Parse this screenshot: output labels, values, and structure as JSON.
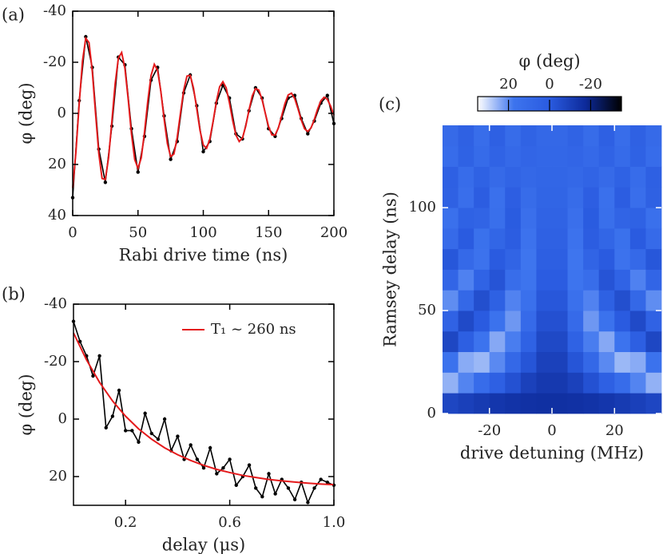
{
  "chart_data": [
    {
      "type": "line",
      "label": "(a)",
      "xlabel": "Rabi drive time (ns)",
      "ylabel": "φ (deg)",
      "xlim": [
        0,
        200
      ],
      "ylim": [
        40,
        -40
      ],
      "xticks": [
        0,
        50,
        100,
        150,
        200
      ],
      "yticks": [
        -40,
        -20,
        0,
        20,
        40
      ],
      "series": [
        {
          "color": "#000000",
          "markers": true,
          "x": [
            0,
            5,
            10,
            15,
            20,
            25,
            30,
            35,
            40,
            45,
            50,
            55,
            60,
            65,
            70,
            75,
            80,
            85,
            90,
            95,
            100,
            105,
            110,
            115,
            120,
            125,
            130,
            135,
            140,
            145,
            150,
            155,
            160,
            165,
            170,
            175,
            180,
            185,
            190,
            195,
            200
          ],
          "values": [
            33,
            -5,
            -30,
            -18,
            14,
            27,
            5,
            -22,
            -19,
            6,
            23,
            9,
            -13,
            -18,
            1,
            18,
            11,
            -8,
            -15,
            -3,
            15,
            11,
            -4,
            -11,
            -6,
            8,
            10,
            -1,
            -10,
            -6,
            6,
            9,
            2,
            -6,
            -7,
            2,
            8,
            3,
            -4,
            -7,
            4
          ]
        },
        {
          "color": "#e41a1c",
          "markers": false,
          "x": [
            0,
            2.5,
            5,
            7.5,
            10,
            12.5,
            15,
            17.5,
            20,
            22.5,
            25,
            27.5,
            30,
            32.5,
            35,
            37.5,
            40,
            42.5,
            45,
            47.5,
            50,
            52.5,
            55,
            57.5,
            60,
            62.5,
            65,
            67.5,
            70,
            72.5,
            75,
            77.5,
            80,
            82.5,
            85,
            87.5,
            90,
            92.5,
            95,
            97.5,
            100,
            102.5,
            105,
            107.5,
            110,
            112.5,
            115,
            117.5,
            120,
            122.5,
            125,
            127.5,
            130,
            132.5,
            135,
            137.5,
            140,
            142.5,
            145,
            147.5,
            150,
            152.5,
            155,
            157.5,
            160,
            162.5,
            165,
            167.5,
            170,
            172.5,
            175,
            177.5,
            180,
            182.5,
            185,
            187.5,
            190,
            192.5,
            195,
            197.5,
            200
          ],
          "values": [
            29.2,
            15.0,
            -3.8,
            -20.5,
            -29.4,
            -27.7,
            -16.5,
            0,
            15.8,
            25.5,
            25.9,
            17.3,
            3.1,
            -11.6,
            -21.7,
            -23.8,
            -17.6,
            -5.5,
            8.0,
            18.1,
            21.5,
            17.4,
            7.3,
            -4.8,
            -14.8,
            -19.2,
            -16.8,
            -8.6,
            2.2,
            11.8,
            16.9,
            15.9,
            9.5,
            0,
            -9.1,
            -14.6,
            -14.9,
            -9.9,
            -1.8,
            6.7,
            12.4,
            13.7,
            10.1,
            3.2,
            -4.6,
            -10.4,
            -12.4,
            -10,
            -4.2,
            2.8,
            8.5,
            11.0,
            9.6,
            5.0,
            -1.3,
            -6.8,
            -9.7,
            -9.1,
            -5.4,
            0,
            5.2,
            8.4,
            8.5,
            5.7,
            1.0,
            -3.8,
            -7.2,
            -7.9,
            -5.8,
            -1.8,
            2.6,
            6.0,
            7.1,
            5.7,
            2.4,
            -1.6,
            -4.9,
            -6.3,
            -5.5,
            -2.8,
            0.7
          ]
        }
      ]
    },
    {
      "type": "line",
      "label": "(b)",
      "xlabel": "delay (μs)",
      "ylabel": "φ (deg)",
      "xlim": [
        0,
        1
      ],
      "ylim": [
        30,
        -40
      ],
      "xticks": [
        0.2,
        0.6,
        {
          "value": 1,
          "label": "1.0"
        }
      ],
      "yticks": [
        -40,
        -20,
        0,
        20
      ],
      "legend": "upper right",
      "series": [
        {
          "color": "#000000",
          "markers": true,
          "x": [
            0,
            0.025,
            0.05,
            0.075,
            0.1,
            0.125,
            0.15,
            0.175,
            0.2,
            0.225,
            0.25,
            0.275,
            0.3,
            0.325,
            0.35,
            0.375,
            0.4,
            0.425,
            0.45,
            0.475,
            0.5,
            0.525,
            0.55,
            0.575,
            0.6,
            0.625,
            0.65,
            0.675,
            0.7,
            0.725,
            0.75,
            0.775,
            0.8,
            0.825,
            0.85,
            0.875,
            0.9,
            0.925,
            0.95,
            0.975,
            1
          ],
          "values": [
            -34,
            -27,
            -22,
            -15,
            -22,
            3,
            -1,
            -10,
            4,
            4,
            8,
            -2,
            5,
            7,
            0,
            11,
            6,
            14,
            9,
            14,
            17,
            10,
            19,
            17,
            14,
            23,
            20,
            16,
            24,
            27,
            19,
            26,
            21,
            24,
            28,
            22,
            29,
            24,
            21,
            22,
            23
          ]
        },
        {
          "name": "T₁ ~ 260 ns",
          "color": "#e41a1c",
          "markers": false,
          "x": [
            0,
            0.05,
            0.1,
            0.15,
            0.2,
            0.25,
            0.3,
            0.35,
            0.4,
            0.45,
            0.5,
            0.55,
            0.6,
            0.65,
            0.7,
            0.75,
            0.8,
            0.85,
            0.9,
            0.95,
            1
          ],
          "values": [
            -30,
            -20.6,
            -12.8,
            -6.3,
            -1.0,
            3.4,
            7.0,
            10.0,
            12.4,
            14.4,
            16.1,
            17.5,
            18.6,
            19.6,
            20.3,
            21.0,
            21.5,
            21.9,
            22.3,
            22.6,
            22.8
          ]
        }
      ]
    },
    {
      "type": "heatmap",
      "label": "(c)",
      "xlabel": "drive detuning (MHz)",
      "ylabel": "Ramsey delay (ns)",
      "xlim": [
        -35,
        35
      ],
      "ylim": [
        0,
        140
      ],
      "xticks": [
        -20,
        0,
        20
      ],
      "yticks": [
        0,
        50,
        100
      ],
      "x": [
        -32.5,
        -27.5,
        -22.5,
        -17.5,
        -12.5,
        -7.5,
        -2.5,
        2.5,
        7.5,
        12.5,
        17.5,
        22.5,
        27.5,
        32.5
      ],
      "y": [
        5,
        15,
        25,
        35,
        45,
        55,
        65,
        75,
        85,
        95,
        105,
        115,
        125,
        135
      ],
      "z": [
        [
          -7.5,
          -9.6,
          -11.5,
          -13.1,
          -14.3,
          -15.1,
          -15.5,
          -15.5,
          -15.1,
          -14.3,
          -13.1,
          -11.5,
          -9.6,
          -7.5
        ],
        [
          25.2,
          19.5,
          12.0,
          3.7,
          -3.5,
          -9.2,
          -12.3,
          -12.3,
          -9.2,
          -3.5,
          3.7,
          12.0,
          19.5,
          25.2
        ],
        [
          16.1,
          24.4,
          26.0,
          20.1,
          9.2,
          -2.2,
          -9.3,
          -9.3,
          -2.2,
          9.2,
          20.1,
          26.0,
          24.4,
          16.1
        ],
        [
          -7.2,
          2.8,
          17.0,
          24.1,
          18.6,
          4.9,
          -6.4,
          -6.4,
          4.9,
          18.6,
          24.1,
          17.0,
          2.8,
          -7.2
        ],
        [
          5.2,
          -5.9,
          0.1,
          15.9,
          21.9,
          10.8,
          -3.8,
          -3.8,
          10.8,
          21.9,
          15.9,
          0.1,
          -5.9,
          5.2
        ],
        [
          20.6,
          8.8,
          -4.4,
          3.9,
          19.3,
          15.0,
          -1.5,
          -1.5,
          15.0,
          19.3,
          3.9,
          -4.4,
          8.8,
          20.6
        ],
        [
          7.3,
          19.1,
          5.8,
          -2.5,
          12.9,
          17.2,
          0.7,
          0.7,
          17.2,
          12.9,
          -2.5,
          5.8,
          19.1,
          7.3
        ],
        [
          -1.6,
          9.9,
          16.2,
          -0.1,
          6.1,
          17.6,
          2.6,
          2.6,
          17.6,
          6.1,
          -0.1,
          16.2,
          9.9,
          -1.6
        ],
        [
          10.8,
          -0.1,
          15.1,
          7.4,
          1.5,
          16.4,
          4.2,
          4.2,
          16.4,
          1.5,
          7.4,
          15.1,
          -0.1,
          10.8
        ],
        [
          14.8,
          4.6,
          6.5,
          13.7,
          0.4,
          14.3,
          5.6,
          5.6,
          14.3,
          0.4,
          13.7,
          6.5,
          4.6,
          14.8
        ],
        [
          4.3,
          13.6,
          1.4,
          14.6,
          2.4,
          11.7,
          6.7,
          6.7,
          11.7,
          2.4,
          14.6,
          1.4,
          13.6,
          4.3
        ],
        [
          3.6,
          11.9,
          4.7,
          10.6,
          6.1,
          9.1,
          7.6,
          7.6,
          9.1,
          6.1,
          10.6,
          4.7,
          11.9,
          3.6
        ],
        [
          11.9,
          4.6,
          10.9,
          5.7,
          9.7,
          7.0,
          8.3,
          8.3,
          7.0,
          9.7,
          5.7,
          10.9,
          4.6,
          11.9
        ],
        [
          10.6,
          4.2,
          12.5,
          3.5,
          11.8,
          5.4,
          8.9,
          8.9,
          5.4,
          11.8,
          3.5,
          12.5,
          4.2,
          10.6
        ]
      ],
      "colorbar": {
        "label": "φ (deg)",
        "lim": [
          35,
          -35
        ],
        "ticks": [
          20,
          0,
          -20
        ],
        "colors": [
          "#ffffff",
          "#3d74ee",
          "#2a5be0",
          "#0d2a9a",
          "#000000"
        ]
      }
    }
  ]
}
